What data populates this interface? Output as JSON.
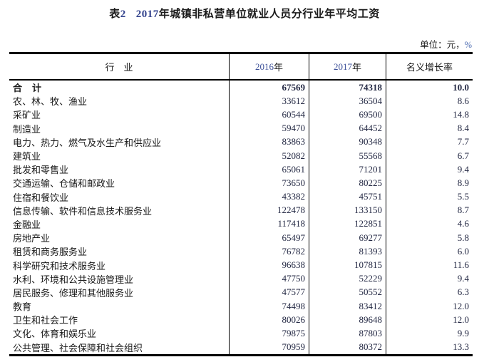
{
  "colors": {
    "background": "#ffffff",
    "text": "#1a1a1a",
    "digit_blue": "#31418c",
    "header_digit_blue": "#3d5199",
    "percent_blue": "#4a6ab0",
    "number_text": "#252a45",
    "border": "#000000"
  },
  "title": {
    "table_word": "表",
    "table_num": "2",
    "year_num": "2017",
    "rest": "年城镇非私营单位就业人员分行业年平均工资"
  },
  "unit_note": {
    "label": "单位：元，",
    "percent": "%"
  },
  "table": {
    "headers": {
      "industry": "行　业",
      "y2016_num": "2016",
      "y2016_suffix": "年",
      "y2017_num": "2017",
      "y2017_suffix": "年",
      "growth": "名义增长率"
    },
    "rows": [
      {
        "name": "合　计",
        "v2016": "67569",
        "v2017": "74318",
        "growth": "10.0",
        "emphasis": true
      },
      {
        "name": "农、林、牧、渔业",
        "v2016": "33612",
        "v2017": "36504",
        "growth": "8.6",
        "emphasis": false
      },
      {
        "name": "采矿业",
        "v2016": "60544",
        "v2017": "69500",
        "growth": "14.8",
        "emphasis": false
      },
      {
        "name": "制造业",
        "v2016": "59470",
        "v2017": "64452",
        "growth": "8.4",
        "emphasis": false
      },
      {
        "name": "电力、热力、燃气及水生产和供应业",
        "v2016": "83863",
        "v2017": "90348",
        "growth": "7.7",
        "emphasis": false
      },
      {
        "name": "建筑业",
        "v2016": "52082",
        "v2017": "55568",
        "growth": "6.7",
        "emphasis": false
      },
      {
        "name": "批发和零售业",
        "v2016": "65061",
        "v2017": "71201",
        "growth": "9.4",
        "emphasis": false
      },
      {
        "name": "交通运输、仓储和邮政业",
        "v2016": "73650",
        "v2017": "80225",
        "growth": "8.9",
        "emphasis": false
      },
      {
        "name": "住宿和餐饮业",
        "v2016": "43382",
        "v2017": "45751",
        "growth": "5.5",
        "emphasis": false
      },
      {
        "name": "信息传输、软件和信息技术服务业",
        "v2016": "122478",
        "v2017": "133150",
        "growth": "8.7",
        "emphasis": false
      },
      {
        "name": "金融业",
        "v2016": "117418",
        "v2017": "122851",
        "growth": "4.6",
        "emphasis": false
      },
      {
        "name": "房地产业",
        "v2016": "65497",
        "v2017": "69277",
        "growth": "5.8",
        "emphasis": false
      },
      {
        "name": "租赁和商务服务业",
        "v2016": "76782",
        "v2017": "81393",
        "growth": "6.0",
        "emphasis": false
      },
      {
        "name": "科学研究和技术服务业",
        "v2016": "96638",
        "v2017": "107815",
        "growth": "11.6",
        "emphasis": false
      },
      {
        "name": "水利、环境和公共设施管理业",
        "v2016": "47750",
        "v2017": "52229",
        "growth": "9.4",
        "emphasis": false
      },
      {
        "name": "居民服务、修理和其他服务业",
        "v2016": "47577",
        "v2017": "50552",
        "growth": "6.3",
        "emphasis": false
      },
      {
        "name": "教育",
        "v2016": "74498",
        "v2017": "83412",
        "growth": "12.0",
        "emphasis": false
      },
      {
        "name": "卫生和社会工作",
        "v2016": "80026",
        "v2017": "89648",
        "growth": "12.0",
        "emphasis": false
      },
      {
        "name": "文化、体育和娱乐业",
        "v2016": "79875",
        "v2017": "87803",
        "growth": "9.9",
        "emphasis": false
      },
      {
        "name": "公共管理、社会保障和社会组织",
        "v2016": "70959",
        "v2017": "80372",
        "growth": "13.3",
        "emphasis": false
      }
    ]
  }
}
